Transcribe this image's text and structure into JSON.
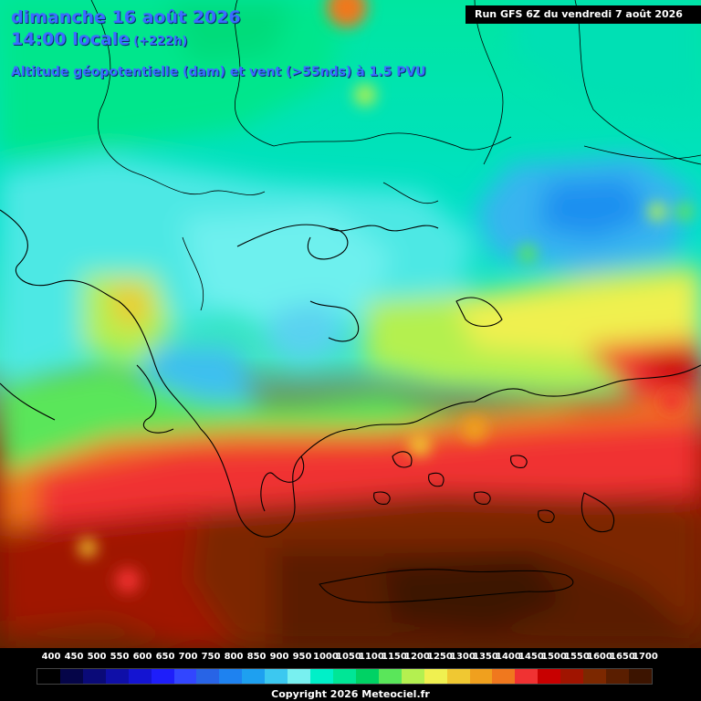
{
  "header": {
    "line1": "dimanche 16 août 2026",
    "line2": "14:00 locale",
    "lead": "(+222h)",
    "parameter": "Altitude géopotentielle (dam) et vent (>55nds) à 1.5 PVU",
    "run": "Run GFS 6Z du vendredi 7 août 2026"
  },
  "legend": {
    "labels": [
      "400",
      "450",
      "500",
      "550",
      "600",
      "650",
      "700",
      "750",
      "800",
      "850",
      "900",
      "950",
      "1000",
      "1050",
      "1100",
      "1150",
      "1200",
      "1250",
      "1300",
      "1350",
      "1400",
      "1450",
      "1500",
      "1550",
      "1600",
      "1650",
      "1700"
    ],
    "colors": [
      "#000000",
      "#050548",
      "#0a0a78",
      "#0f0fa8",
      "#1414d2",
      "#1e1efa",
      "#3246ff",
      "#2864e6",
      "#1e82f0",
      "#1ea0f0",
      "#3cc8f0",
      "#78f0f0",
      "#00f0c8",
      "#00e696",
      "#00d264",
      "#5ae65a",
      "#b4f050",
      "#f0f050",
      "#f0c832",
      "#f0a01e",
      "#f0781e",
      "#f03232",
      "#c80000",
      "#a01400",
      "#7c2800",
      "#5a1e00",
      "#3c1400"
    ],
    "copyright": "Copyright 2026 Meteociel.fr"
  }
}
